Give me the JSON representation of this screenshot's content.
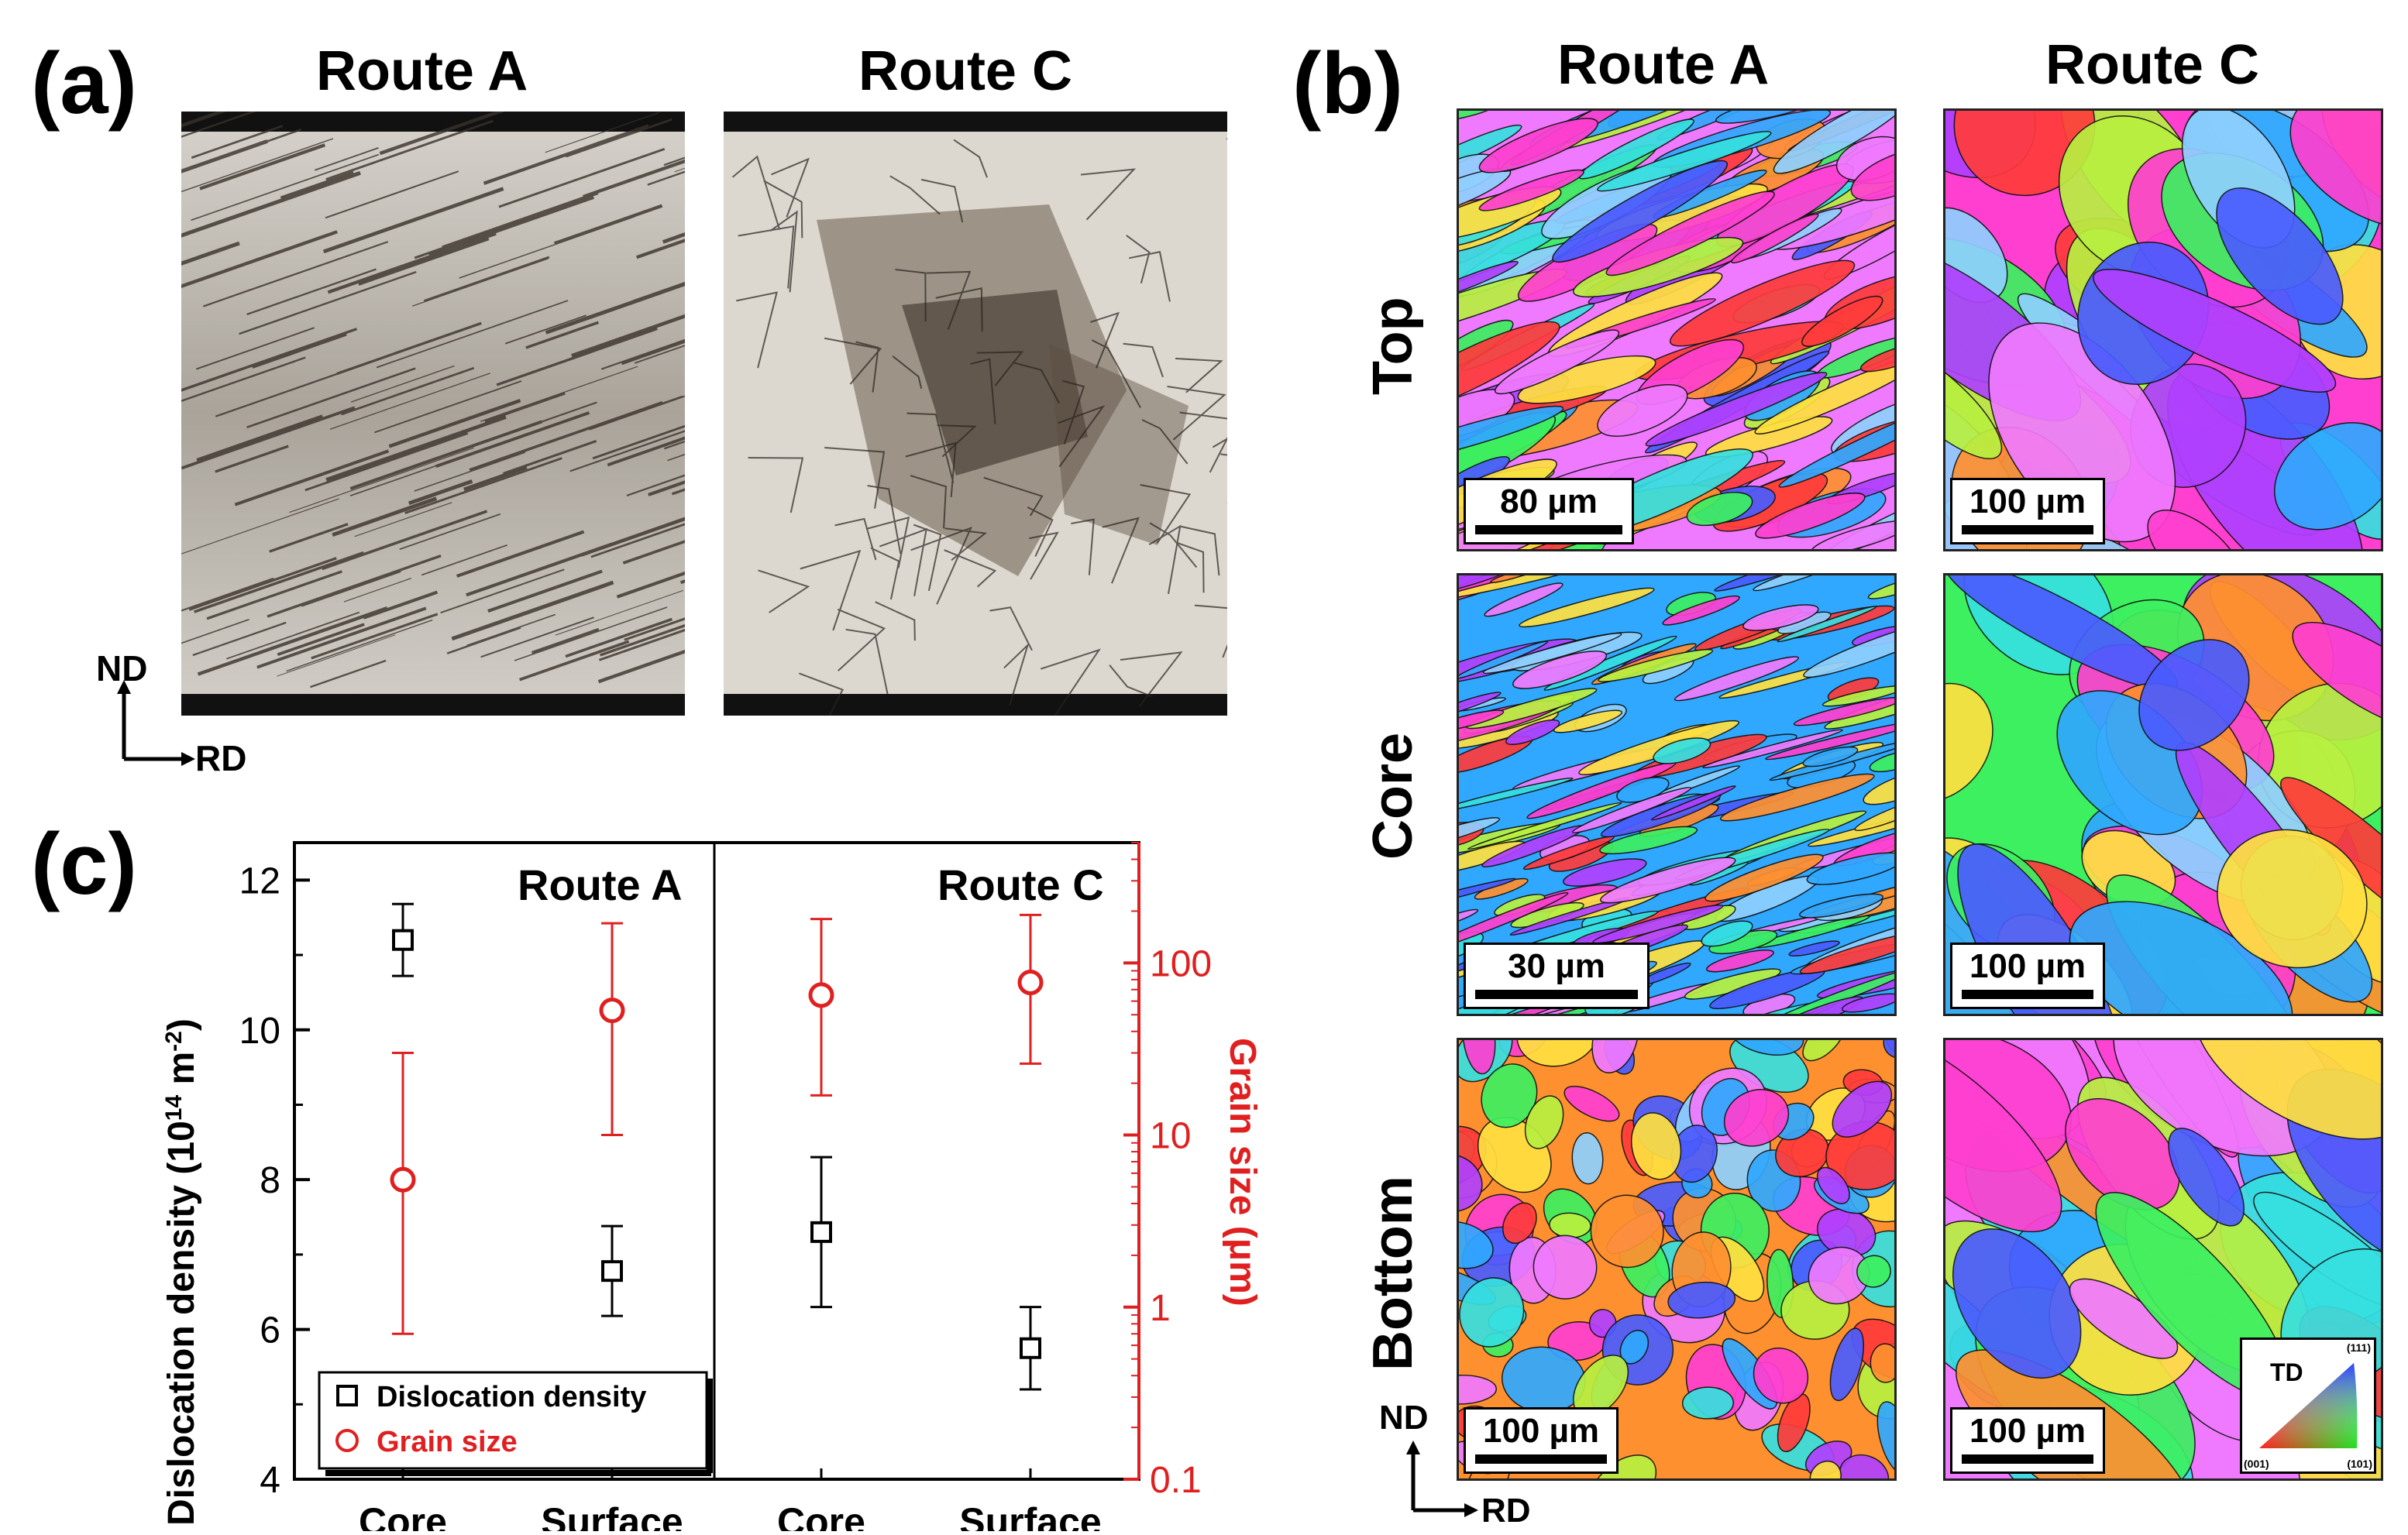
{
  "panel_a": {
    "label": "(a)",
    "titles": [
      "Route A",
      "Route C"
    ],
    "axis_nd": "ND",
    "axis_rd": "RD"
  },
  "panel_b": {
    "label": "(b)",
    "titles": [
      "Route A",
      "Route C"
    ],
    "rows": [
      "Top",
      "Core",
      "Bottom"
    ],
    "scale_bars": [
      [
        "80 µm",
        "100 µm"
      ],
      [
        "30 µm",
        "100 µm"
      ],
      [
        "100 µm",
        "100 µm"
      ]
    ],
    "axis_nd": "ND",
    "axis_rd": "RD",
    "legend": {
      "title": "TD",
      "corner_111": "(111)",
      "corner_001": "(001)",
      "corner_101": "(101)"
    }
  },
  "panel_c": {
    "label": "(c)",
    "route_labels": [
      "Route A",
      "Route C"
    ],
    "legend": [
      "Dislocation density",
      "Grain size"
    ]
  },
  "chart_data": {
    "type": "scatter",
    "categories": [
      "Core",
      "Surface",
      "Core",
      "Surface"
    ],
    "groups": [
      "Route A",
      "Route A",
      "Route C",
      "Route C"
    ],
    "ylabel": "Dislocation density (10^14 m^-2)",
    "ylabel_parts": {
      "main": "Dislocation density (10",
      "exp1": "14",
      "mid": " m",
      "exp2": "-2",
      "end": ")"
    },
    "ylim": [
      4,
      12.5
    ],
    "yticks": [
      "4",
      "6",
      "8",
      "10",
      "12"
    ],
    "y2label": "Grain size (μm)",
    "y2_scale": "log",
    "y2lim": [
      0.1,
      500
    ],
    "y2ticks": [
      "0.1",
      "1",
      "10",
      "100"
    ],
    "series": [
      {
        "name": "Dislocation density",
        "axis": "left",
        "marker": "square",
        "color": "#000000",
        "values": [
          11.2,
          6.78,
          7.3,
          5.75
        ],
        "err_low": [
          10.72,
          6.18,
          6.3,
          5.2
        ],
        "err_high": [
          11.68,
          7.38,
          8.3,
          6.3
        ]
      },
      {
        "name": "Grain size",
        "axis": "right",
        "marker": "circle",
        "color": "#e02020",
        "values": [
          5.5,
          53,
          65,
          77
        ],
        "err_low": [
          0.7,
          10,
          17,
          26
        ],
        "err_high": [
          30,
          170,
          180,
          190
        ]
      }
    ]
  }
}
